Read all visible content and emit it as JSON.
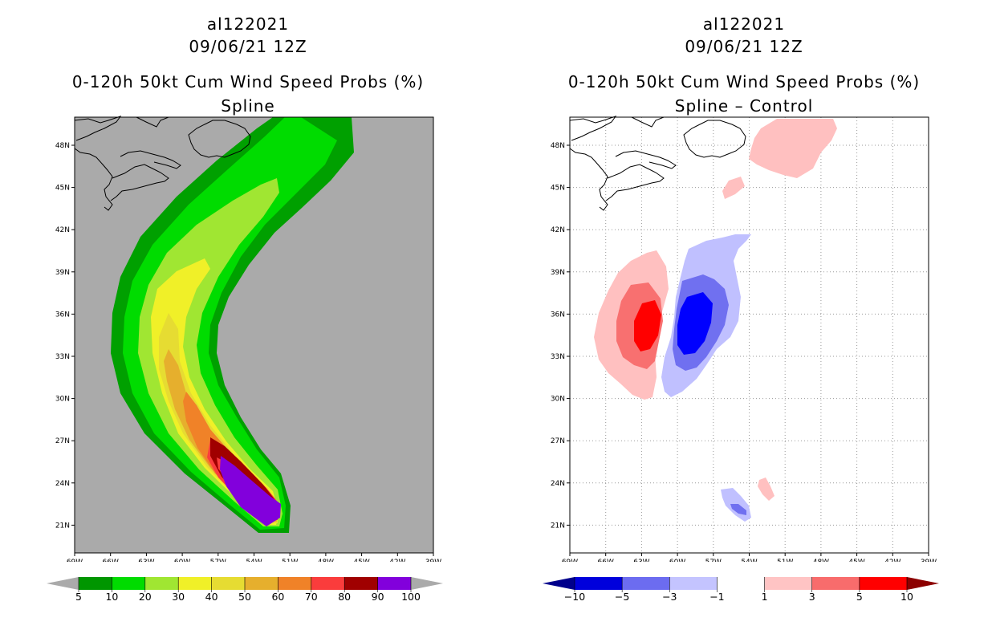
{
  "panels": [
    {
      "storm_id": "al122021",
      "datetime": "09/06/21 12Z",
      "product": "0-120h 50kt Cum Wind Speed Probs (%)",
      "subtitle": "Spline",
      "colors": [
        "#aaaaaa",
        "#00a000",
        "#00dc00",
        "#a0e632",
        "#e6e632",
        "#e6d232",
        "#e6af2d",
        "#f08228",
        "#fa3c3c",
        "#a00000",
        "#8200dc"
      ],
      "colorbar": {
        "labels": [
          "5",
          "10",
          "20",
          "30",
          "40",
          "50",
          "60",
          "70",
          "80",
          "90",
          "100"
        ],
        "colors": [
          "#009600",
          "#00dc00",
          "#a0e632",
          "#f0f028",
          "#e6dc32",
          "#e6af2d",
          "#f08228",
          "#fa3c3c",
          "#a00000",
          "#8200dc"
        ],
        "end_left": "#aaaaaa",
        "end_right": "#aaaaaa"
      }
    },
    {
      "storm_id": "al122021",
      "datetime": "09/06/21 12Z",
      "product": "0-120h 50kt Cum Wind Speed Probs (%)",
      "subtitle": "Spline – Control",
      "colors": {
        "pos1": "#ffc0c0",
        "pos3": "#f87070",
        "pos5": "#ff0000",
        "neg1": "#c0c0ff",
        "neg3": "#7070f0",
        "neg5": "#0000ff"
      },
      "colorbar": {
        "labels": [
          "−10",
          "−5",
          "−3",
          "−1",
          "1",
          "3",
          "5",
          "10"
        ],
        "colors": [
          "#0000dc",
          "#6c6cf0",
          "#c4c4ff",
          "#ffffff",
          "#ffc4c4",
          "#f86c6c",
          "#ff0000"
        ],
        "end_left": "#00008c",
        "end_right": "#8c0000"
      }
    }
  ],
  "axes": {
    "lon_ticks": [
      "69W",
      "66W",
      "63W",
      "60W",
      "57W",
      "54W",
      "51W",
      "48W",
      "45W",
      "42W",
      "39W"
    ],
    "lat_ticks": [
      "48N",
      "45N",
      "42N",
      "39N",
      "36N",
      "33N",
      "30N",
      "27N",
      "24N",
      "21N"
    ]
  }
}
